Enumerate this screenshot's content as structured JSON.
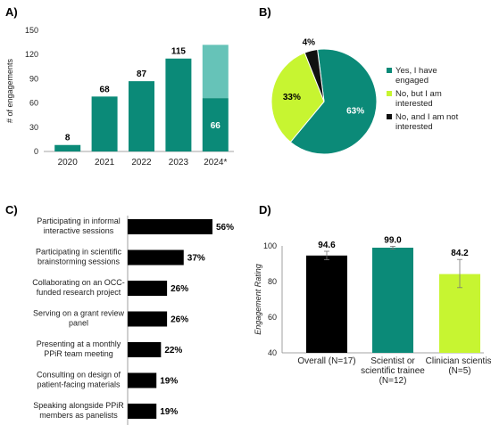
{
  "chart_data": [
    {
      "panel": "A)",
      "type": "bar",
      "ylabel": "# of engagements",
      "ylim": [
        0,
        150
      ],
      "yticks": [
        0,
        30,
        60,
        90,
        120,
        150
      ],
      "categories": [
        "2020",
        "2021",
        "2022",
        "2023",
        "2024*"
      ],
      "values": [
        8,
        68,
        87,
        115,
        66
      ],
      "value_labels": [
        "8",
        "68",
        "87",
        "115",
        "66"
      ],
      "projected_extra": [
        0,
        0,
        0,
        0,
        66
      ],
      "colors": {
        "bar": "#0b8a78",
        "projected": "#66c3b8"
      },
      "grid": false
    },
    {
      "panel": "B)",
      "type": "pie",
      "slices": [
        {
          "label": "Yes, I have engaged",
          "value": 63,
          "display": "63%",
          "color": "#0b8a78"
        },
        {
          "label": "No, but I am interested",
          "value": 33,
          "display": "33%",
          "color": "#c7f531"
        },
        {
          "label": "No, and I am not interested",
          "value": 4,
          "display": "4%",
          "color": "#111111"
        }
      ],
      "legend": "right"
    },
    {
      "panel": "C)",
      "type": "bar",
      "orientation": "horizontal",
      "categories": [
        [
          "Participating in informal",
          "interactive sessions"
        ],
        [
          "Participating in scientific",
          "brainstorming sessions"
        ],
        [
          "Collaborating on an OCC-",
          "funded research project"
        ],
        [
          "Serving on a grant review",
          "panel"
        ],
        [
          "Presenting at a monthly",
          "PPiR team meeting"
        ],
        [
          "Consulting on design of",
          "patient-facing materials"
        ],
        [
          "Speaking alongside PPiR",
          "members as panelists"
        ]
      ],
      "values": [
        56,
        37,
        26,
        26,
        22,
        19,
        19
      ],
      "value_labels": [
        "56%",
        "37%",
        "26%",
        "26%",
        "22%",
        "19%",
        "19%"
      ],
      "xlim": [
        0,
        56
      ],
      "colors": {
        "bar": "#000000"
      }
    },
    {
      "panel": "D)",
      "type": "bar",
      "ylabel": "Engagement Rating",
      "ylim": [
        40,
        100
      ],
      "yticks": [
        40,
        60,
        80,
        100
      ],
      "categories": [
        [
          "Overall (N=17)"
        ],
        [
          "Scientist or",
          "scientific trainee",
          "(N=12)"
        ],
        [
          "Clinician scientist",
          "(N=5)"
        ]
      ],
      "values": [
        94.6,
        99.0,
        84.2
      ],
      "value_labels": [
        "94.6",
        "99.0",
        "84.2"
      ],
      "error_low": [
        92.2,
        98.2,
        76.6
      ],
      "error_high": [
        97.0,
        99.8,
        92.4
      ],
      "colors": [
        "#000000",
        "#0b8a78",
        "#c7f531"
      ],
      "grid": false
    }
  ]
}
